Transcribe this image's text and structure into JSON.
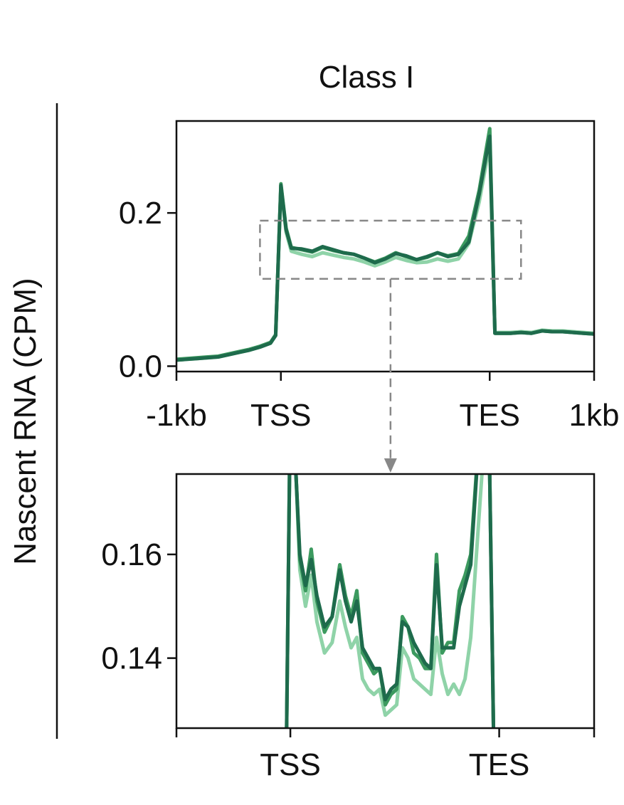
{
  "figure": {
    "title": "Class I",
    "ylabel": "Nascent RNA (CPM)"
  },
  "colors": {
    "series": [
      "#8fd3a8",
      "#3c9a5f",
      "#1e6b4c"
    ],
    "zoom_box": "#888888",
    "axes": "#111111"
  },
  "chart_data": [
    {
      "type": "line",
      "panel": "overview",
      "title": "Class I",
      "ylabel": "Nascent RNA (CPM)",
      "xlabel": "",
      "ylim": [
        -0.007,
        0.32
      ],
      "xlim": [
        -1,
        3
      ],
      "xticks": [
        -1,
        0,
        2,
        3
      ],
      "xtick_labels": [
        "-1kb",
        "TSS",
        "TES",
        "1kb"
      ],
      "yticks": [
        0.0,
        0.2
      ],
      "ytick_labels": [
        "0.0",
        "0.2"
      ],
      "grid": false,
      "legend": "none",
      "zoom_region": {
        "x": [
          -0.2,
          2.3
        ],
        "y": [
          0.114,
          0.19
        ]
      },
      "x": [
        -1.0,
        -0.9,
        -0.8,
        -0.7,
        -0.6,
        -0.5,
        -0.4,
        -0.3,
        -0.2,
        -0.1,
        -0.05,
        0.0,
        0.05,
        0.1,
        0.2,
        0.3,
        0.4,
        0.5,
        0.6,
        0.7,
        0.8,
        0.9,
        1.0,
        1.1,
        1.2,
        1.3,
        1.4,
        1.5,
        1.6,
        1.7,
        1.8,
        1.9,
        2.0,
        2.05,
        2.1,
        2.2,
        2.3,
        2.4,
        2.5,
        2.6,
        2.7,
        2.8,
        2.9,
        3.0
      ],
      "series": [
        {
          "values": [
            0.008,
            0.009,
            0.01,
            0.011,
            0.012,
            0.015,
            0.018,
            0.021,
            0.025,
            0.03,
            0.04,
            0.235,
            0.175,
            0.15,
            0.146,
            0.143,
            0.148,
            0.145,
            0.142,
            0.14,
            0.136,
            0.131,
            0.136,
            0.142,
            0.138,
            0.135,
            0.136,
            0.14,
            0.137,
            0.14,
            0.16,
            0.215,
            0.29,
            0.044,
            0.044,
            0.044,
            0.045,
            0.044,
            0.047,
            0.046,
            0.046,
            0.045,
            0.044,
            0.043
          ]
        },
        {
          "values": [
            0.009,
            0.01,
            0.011,
            0.012,
            0.013,
            0.016,
            0.019,
            0.022,
            0.026,
            0.031,
            0.041,
            0.238,
            0.18,
            0.155,
            0.152,
            0.149,
            0.155,
            0.151,
            0.148,
            0.146,
            0.141,
            0.136,
            0.141,
            0.148,
            0.143,
            0.139,
            0.142,
            0.148,
            0.144,
            0.147,
            0.17,
            0.23,
            0.31,
            0.043,
            0.043,
            0.043,
            0.044,
            0.043,
            0.046,
            0.045,
            0.045,
            0.044,
            0.043,
            0.042
          ]
        },
        {
          "values": [
            0.008,
            0.009,
            0.01,
            0.011,
            0.012,
            0.015,
            0.018,
            0.021,
            0.025,
            0.03,
            0.04,
            0.236,
            0.178,
            0.154,
            0.153,
            0.15,
            0.156,
            0.152,
            0.148,
            0.146,
            0.141,
            0.135,
            0.14,
            0.147,
            0.144,
            0.139,
            0.143,
            0.148,
            0.143,
            0.146,
            0.162,
            0.225,
            0.3,
            0.043,
            0.043,
            0.043,
            0.044,
            0.043,
            0.046,
            0.045,
            0.045,
            0.044,
            0.043,
            0.042
          ]
        }
      ]
    },
    {
      "type": "line",
      "panel": "zoom",
      "xlabel": "",
      "ylabel": "",
      "ylim": [
        0.1265,
        0.1755
      ],
      "xlim": [
        -0.6,
        1.6
      ],
      "xticks": [
        -0.6,
        0,
        1.1,
        1.6
      ],
      "xtick_labels": [
        "",
        "TSS",
        "TES",
        ""
      ],
      "yticks": [
        0.14,
        0.16
      ],
      "ytick_labels": [
        "0.14",
        "0.16"
      ],
      "grid": false,
      "legend": "none",
      "x": [
        -0.02,
        0.0,
        0.03,
        0.05,
        0.08,
        0.11,
        0.14,
        0.18,
        0.22,
        0.26,
        0.29,
        0.32,
        0.35,
        0.38,
        0.41,
        0.44,
        0.47,
        0.5,
        0.53,
        0.56,
        0.59,
        0.62,
        0.65,
        0.68,
        0.71,
        0.74,
        0.77,
        0.8,
        0.83,
        0.86,
        0.89,
        0.92,
        0.95,
        0.98,
        1.01,
        1.04,
        1.07,
        1.09,
        1.11,
        1.13
      ],
      "series": [
        {
          "values": [
            0.126,
            0.19,
            0.175,
            0.157,
            0.15,
            0.156,
            0.147,
            0.141,
            0.143,
            0.151,
            0.146,
            0.142,
            0.144,
            0.136,
            0.134,
            0.133,
            0.134,
            0.129,
            0.13,
            0.131,
            0.142,
            0.14,
            0.136,
            0.135,
            0.134,
            0.133,
            0.144,
            0.137,
            0.133,
            0.135,
            0.133,
            0.136,
            0.144,
            0.16,
            0.176,
            0.2,
            0.126,
            0.126,
            0.126,
            0.126
          ]
        },
        {
          "values": [
            0.126,
            0.19,
            0.175,
            0.159,
            0.153,
            0.161,
            0.151,
            0.145,
            0.148,
            0.158,
            0.152,
            0.148,
            0.153,
            0.141,
            0.139,
            0.137,
            0.138,
            0.131,
            0.133,
            0.134,
            0.148,
            0.146,
            0.141,
            0.14,
            0.138,
            0.138,
            0.16,
            0.141,
            0.143,
            0.143,
            0.153,
            0.156,
            0.16,
            0.176,
            0.2,
            0.2,
            0.126,
            0.126,
            0.126,
            0.126
          ]
        },
        {
          "values": [
            0.126,
            0.19,
            0.175,
            0.16,
            0.154,
            0.159,
            0.152,
            0.146,
            0.148,
            0.157,
            0.151,
            0.147,
            0.151,
            0.142,
            0.14,
            0.138,
            0.138,
            0.132,
            0.134,
            0.135,
            0.147,
            0.146,
            0.143,
            0.141,
            0.139,
            0.138,
            0.158,
            0.142,
            0.142,
            0.142,
            0.15,
            0.154,
            0.158,
            0.175,
            0.2,
            0.2,
            0.126,
            0.126,
            0.126,
            0.126
          ]
        }
      ]
    }
  ]
}
